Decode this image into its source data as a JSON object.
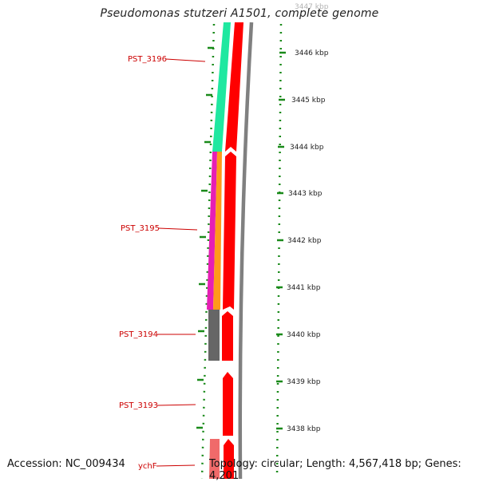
{
  "title": "Pseudomonas stutzeri A1501, complete genome",
  "footer": {
    "accession": "Accession: NC_009434",
    "topology": "Topology: circular; Length: 4,567,418 bp; Genes: 4,201"
  },
  "gene_labels": [
    "PST_3196",
    "PST_3195",
    "PST_3194",
    "PST_3193",
    "ychF"
  ],
  "kbp_ticks": [
    "3447 kbp",
    "3446 kbp",
    "3445 kbp",
    "3444 kbp",
    "3443 kbp",
    "3442 kbp",
    "3441 kbp",
    "3440 kbp",
    "3439 kbp",
    "3438 kbp"
  ],
  "colors": {
    "label_red": "#cc0000",
    "forward_gene": "#ff0000",
    "cog_green": "#1fe8a0",
    "cog_magenta": "#e61fb4",
    "cog_orange": "#ff9a1a",
    "cog_gray": "#666666",
    "cog_pink": "#f06a6a",
    "backbone": "#808080",
    "tick_green": "#1a8a1a"
  }
}
